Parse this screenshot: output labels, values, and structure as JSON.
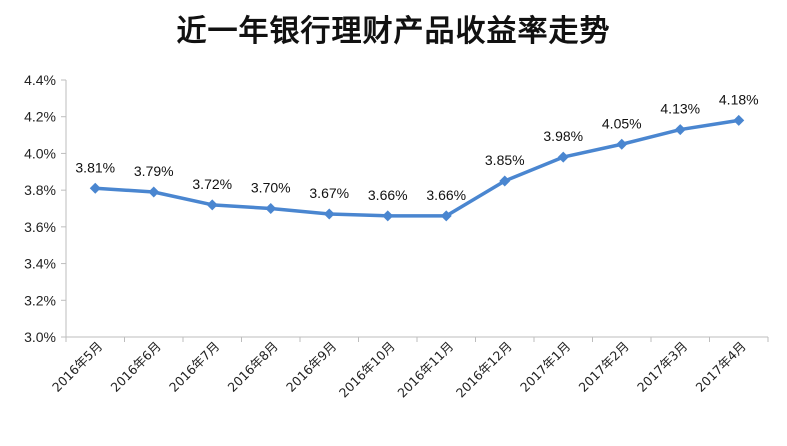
{
  "chart_data": {
    "type": "line",
    "title": "近一年银行理财产品收益率走势",
    "categories": [
      "2016年5月",
      "2016年6月",
      "2016年7月",
      "2016年8月",
      "2016年9月",
      "2016年10月",
      "2016年11月",
      "2016年12月",
      "2017年1月",
      "2017年2月",
      "2017年3月",
      "2017年4月"
    ],
    "values": [
      3.81,
      3.79,
      3.72,
      3.7,
      3.67,
      3.66,
      3.66,
      3.85,
      3.98,
      4.05,
      4.13,
      4.18
    ],
    "data_labels": [
      "3.81%",
      "3.79%",
      "3.72%",
      "3.70%",
      "3.67%",
      "3.66%",
      "3.66%",
      "3.85%",
      "3.98%",
      "4.05%",
      "4.13%",
      "4.18%"
    ],
    "y_ticks": [
      "3.0%",
      "3.2%",
      "3.4%",
      "3.6%",
      "3.8%",
      "4.0%",
      "4.2%",
      "4.4%"
    ],
    "ylim": [
      3.0,
      4.4
    ],
    "grid": false,
    "legend": "none",
    "colors": {
      "line": "#4a86d0",
      "marker": "#4a86d0",
      "axis": "#bdbdbd"
    }
  }
}
